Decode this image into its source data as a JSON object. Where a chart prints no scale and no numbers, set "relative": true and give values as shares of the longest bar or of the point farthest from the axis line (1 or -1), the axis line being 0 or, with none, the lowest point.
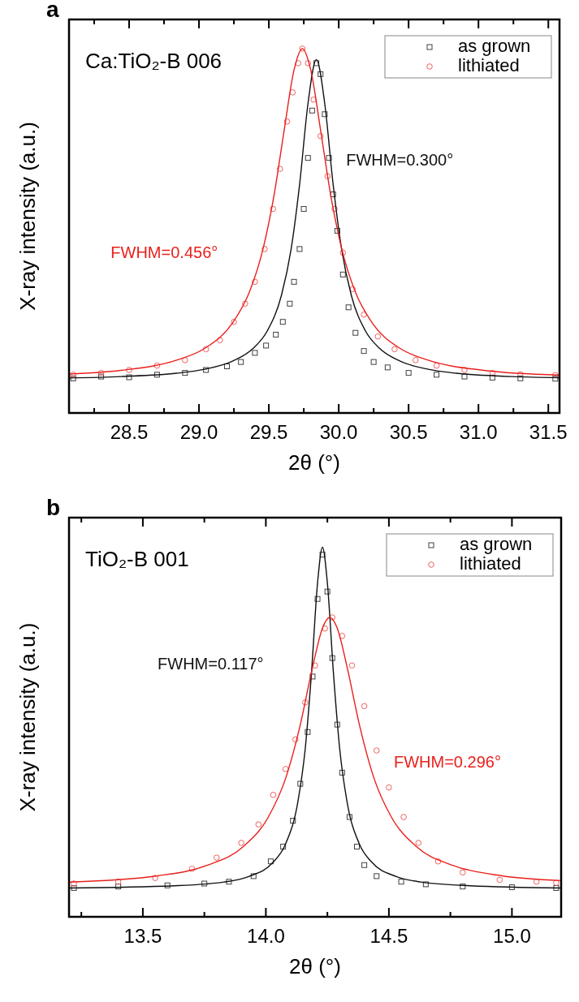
{
  "chart_data": [
    {
      "type": "line",
      "title": "a",
      "subtitle": "Ca:TiO₂-B 006",
      "xlabel": "2θ (°)",
      "ylabel": "X-ray intensity (a.u.)",
      "relative": true,
      "legend": "top right",
      "grid": false,
      "xlim": [
        28.07,
        31.58
      ],
      "xticks": [
        {
          "value": 28.25,
          "label": null
        },
        {
          "value": 28.5,
          "label": "28.5"
        },
        {
          "value": 28.75,
          "label": null
        },
        {
          "value": 29,
          "label": "29.0"
        },
        {
          "value": 29.25,
          "label": null
        },
        {
          "value": 29.5,
          "label": "29.5"
        },
        {
          "value": 29.75,
          "label": null
        },
        {
          "value": 30,
          "label": "30.0"
        },
        {
          "value": 30.25,
          "label": null
        },
        {
          "value": 30.5,
          "label": "30.5"
        },
        {
          "value": 30.75,
          "label": null
        },
        {
          "value": 31,
          "label": "31.0"
        },
        {
          "value": 31.25,
          "label": null
        },
        {
          "value": 31.5,
          "label": "31.5"
        }
      ],
      "annotations": [
        "FWHM=0.300°",
        "FWHM=0.456°"
      ],
      "series": [
        {
          "name": "as grown",
          "type": "scatter",
          "marker": "square",
          "color": "#404040",
          "x": [
            28.1,
            28.3,
            28.5,
            28.7,
            28.9,
            29.05,
            29.2,
            29.3,
            29.4,
            29.48,
            29.55,
            29.6,
            29.65,
            29.68,
            29.72,
            29.75,
            29.78,
            29.81,
            29.84,
            29.87,
            29.9,
            29.93,
            29.96,
            29.99,
            30.03,
            30.07,
            30.12,
            30.18,
            30.25,
            30.35,
            30.5,
            30.7,
            30.9,
            31.1,
            31.3,
            31.55
          ],
          "values": [
            0.095,
            0.1,
            0.098,
            0.105,
            0.11,
            0.118,
            0.128,
            0.14,
            0.165,
            0.185,
            0.215,
            0.25,
            0.3,
            0.36,
            0.45,
            0.56,
            0.7,
            0.83,
            0.96,
            0.93,
            0.82,
            0.7,
            0.6,
            0.5,
            0.38,
            0.29,
            0.22,
            0.17,
            0.14,
            0.125,
            0.11,
            0.105,
            0.1,
            0.097,
            0.095,
            0.094
          ]
        },
        {
          "name": "lithiated",
          "type": "scatter",
          "marker": "circle",
          "color": "#f06060",
          "x": [
            28.1,
            28.3,
            28.5,
            28.7,
            28.9,
            29.05,
            29.15,
            29.25,
            29.33,
            29.4,
            29.47,
            29.53,
            29.58,
            29.63,
            29.67,
            29.71,
            29.74,
            29.78,
            29.82,
            29.87,
            29.92,
            29.97,
            30.03,
            30.1,
            30.18,
            30.28,
            30.4,
            30.55,
            30.7,
            30.9,
            31.1,
            31.3,
            31.55
          ],
          "values": [
            0.105,
            0.11,
            0.118,
            0.13,
            0.145,
            0.175,
            0.2,
            0.25,
            0.3,
            0.36,
            0.45,
            0.56,
            0.67,
            0.8,
            0.88,
            0.96,
            1.0,
            0.96,
            0.86,
            0.76,
            0.65,
            0.56,
            0.44,
            0.34,
            0.27,
            0.21,
            0.175,
            0.145,
            0.13,
            0.118,
            0.11,
            0.106,
            0.104
          ]
        },
        {
          "type": "line",
          "color": "#111111",
          "x": [
            28.07,
            28.44,
            28.84,
            29.04,
            29.24,
            29.39,
            29.49,
            29.59,
            29.66,
            29.72,
            29.78,
            29.84,
            29.9,
            29.96,
            30.02,
            30.09,
            30.19,
            30.29,
            30.44,
            30.64,
            30.84,
            31.24,
            31.58
          ],
          "values": [
            0.096,
            0.1,
            0.109,
            0.12,
            0.142,
            0.178,
            0.226,
            0.323,
            0.451,
            0.627,
            0.849,
            0.97,
            0.849,
            0.627,
            0.451,
            0.323,
            0.226,
            0.178,
            0.142,
            0.12,
            0.109,
            0.1,
            0.097
          ]
        },
        {
          "type": "line",
          "color": "#e8201c",
          "x": [
            28.07,
            28.44,
            28.84,
            29.04,
            29.24,
            29.36,
            29.46,
            29.54,
            29.61,
            29.68,
            29.74,
            29.8,
            29.87,
            29.94,
            30.02,
            30.12,
            30.24,
            30.44,
            30.64,
            31.04,
            31.58
          ],
          "values": [
            0.107,
            0.117,
            0.145,
            0.177,
            0.247,
            0.331,
            0.453,
            0.604,
            0.777,
            0.941,
            1.0,
            0.941,
            0.777,
            0.604,
            0.453,
            0.331,
            0.247,
            0.177,
            0.145,
            0.117,
            0.104
          ]
        }
      ]
    },
    {
      "type": "line",
      "title": "b",
      "subtitle": "TiO₂-B 001",
      "xlabel": "2θ (°)",
      "ylabel": "X-ray intensity (a.u.)",
      "relative": true,
      "legend": "top right",
      "grid": false,
      "xlim": [
        13.2,
        15.2
      ],
      "xticks": [
        {
          "value": 13.25,
          "label": null
        },
        {
          "value": 13.5,
          "label": "13.5"
        },
        {
          "value": 13.75,
          "label": null
        },
        {
          "value": 14,
          "label": "14.0"
        },
        {
          "value": 14.25,
          "label": null
        },
        {
          "value": 14.5,
          "label": "14.5"
        },
        {
          "value": 14.75,
          "label": null
        },
        {
          "value": 15,
          "label": "15.0"
        }
      ],
      "annotations": [
        "FWHM=0.117°",
        "FWHM=0.296°"
      ],
      "series": [
        {
          "name": "as grown",
          "type": "scatter",
          "marker": "square",
          "color": "#404040",
          "x": [
            13.22,
            13.4,
            13.6,
            13.75,
            13.85,
            13.95,
            14.02,
            14.07,
            14.11,
            14.14,
            14.17,
            14.19,
            14.21,
            14.23,
            14.25,
            14.27,
            14.29,
            14.31,
            14.34,
            14.37,
            14.4,
            14.45,
            14.55,
            14.65,
            14.8,
            15.0,
            15.18
          ],
          "values": [
            0.078,
            0.082,
            0.085,
            0.09,
            0.095,
            0.11,
            0.15,
            0.19,
            0.26,
            0.36,
            0.5,
            0.65,
            0.86,
            0.98,
            0.88,
            0.7,
            0.52,
            0.39,
            0.27,
            0.19,
            0.14,
            0.11,
            0.095,
            0.088,
            0.082,
            0.08,
            0.078
          ]
        },
        {
          "name": "lithiated",
          "type": "scatter",
          "marker": "circle",
          "color": "#f06060",
          "x": [
            13.22,
            13.4,
            13.55,
            13.7,
            13.8,
            13.9,
            13.97,
            14.03,
            14.08,
            14.12,
            14.16,
            14.2,
            14.24,
            14.27,
            14.31,
            14.35,
            14.4,
            14.45,
            14.5,
            14.56,
            14.62,
            14.7,
            14.8,
            14.95,
            15.1,
            15.18
          ],
          "values": [
            0.09,
            0.095,
            0.105,
            0.13,
            0.16,
            0.2,
            0.25,
            0.33,
            0.4,
            0.48,
            0.58,
            0.68,
            0.78,
            0.81,
            0.76,
            0.68,
            0.57,
            0.45,
            0.35,
            0.27,
            0.2,
            0.15,
            0.12,
            0.1,
            0.095,
            0.092
          ]
        },
        {
          "type": "line",
          "color": "#111111",
          "x": [
            13.2,
            13.63,
            13.83,
            13.93,
            14.03,
            14.08,
            14.13,
            14.16,
            14.185,
            14.21,
            14.23,
            14.25,
            14.275,
            14.3,
            14.33,
            14.38,
            14.43,
            14.53,
            14.63,
            14.83,
            15.2
          ],
          "values": [
            0.078,
            0.084,
            0.094,
            0.109,
            0.148,
            0.197,
            0.311,
            0.455,
            0.656,
            0.903,
            1.0,
            0.903,
            0.656,
            0.455,
            0.311,
            0.197,
            0.148,
            0.109,
            0.094,
            0.084,
            0.078
          ]
        },
        {
          "type": "line",
          "color": "#e8201c",
          "x": [
            13.2,
            13.56,
            13.76,
            13.91,
            14.01,
            14.08,
            14.14,
            14.19,
            14.23,
            14.26,
            14.29,
            14.33,
            14.38,
            14.44,
            14.51,
            14.61,
            14.76,
            14.96,
            15.2
          ],
          "values": [
            0.094,
            0.111,
            0.139,
            0.191,
            0.27,
            0.374,
            0.52,
            0.676,
            0.781,
            0.81,
            0.781,
            0.676,
            0.52,
            0.374,
            0.27,
            0.191,
            0.139,
            0.111,
            0.098
          ]
        }
      ]
    }
  ]
}
